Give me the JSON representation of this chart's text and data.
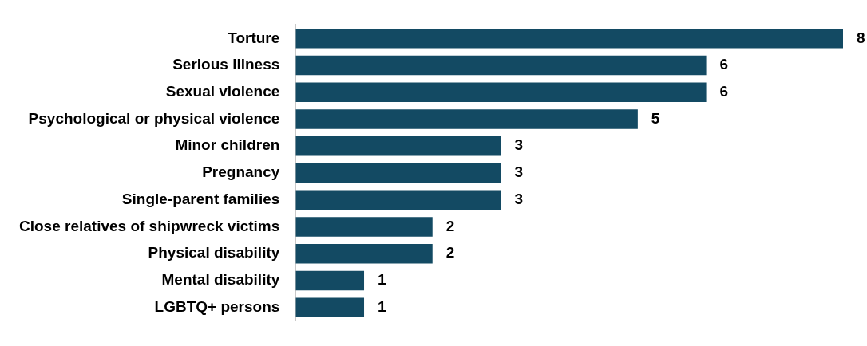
{
  "chart_data": {
    "type": "bar",
    "orientation": "horizontal",
    "categories": [
      "Torture",
      "Serious illness",
      "Sexual violence",
      "Psychological or physical violence",
      "Minor children",
      "Pregnancy",
      "Single-parent families",
      "Close relatives of shipwreck victims",
      "Physical disability",
      "Mental disability",
      "LGBTQ+ persons"
    ],
    "values": [
      8,
      6,
      6,
      5,
      3,
      3,
      3,
      2,
      2,
      1,
      1
    ],
    "color": "#134a63",
    "data_labels": true
  }
}
